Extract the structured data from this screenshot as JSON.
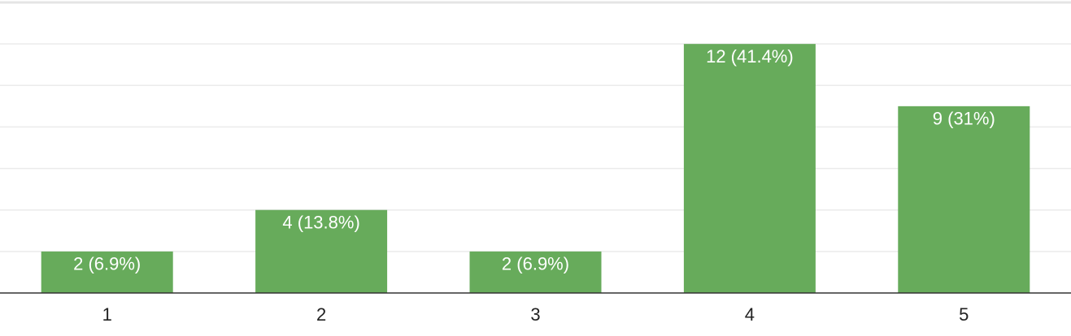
{
  "chart_data": {
    "type": "bar",
    "categories": [
      "1",
      "2",
      "3",
      "4",
      "5"
    ],
    "values": [
      2,
      4,
      2,
      12,
      9
    ],
    "data_labels": [
      "2 (6.9%)",
      "4 (13.8%)",
      "2 (6.9%)",
      "12 (41.4%)",
      "9 (31%)"
    ],
    "ylim": [
      0,
      14
    ],
    "grid": true,
    "legend": "none",
    "bar_color": "#67ab5b"
  }
}
